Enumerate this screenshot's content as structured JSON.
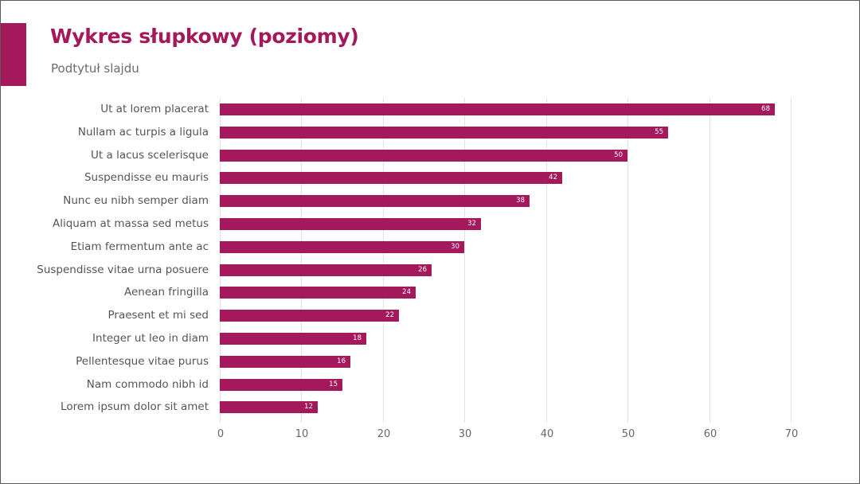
{
  "slide": {
    "title": "Wykres słupkowy (poziomy)",
    "subtitle": "Podtytuł slajdu",
    "accent_color": "#a3195b"
  },
  "chart_data": {
    "type": "bar",
    "orientation": "horizontal",
    "title": "",
    "xlabel": "",
    "ylabel": "",
    "xlim": [
      0,
      70
    ],
    "x_ticks": [
      0,
      10,
      20,
      30,
      40,
      50,
      60,
      70
    ],
    "grid": true,
    "legend": null,
    "bar_color": "#a3195b",
    "data_labels": true,
    "categories": [
      "Ut at lorem placerat",
      "Nullam ac turpis a ligula",
      "Ut a lacus scelerisque",
      "Suspendisse eu mauris",
      "Nunc eu nibh semper diam",
      "Aliquam at massa sed metus",
      "Etiam fermentum ante ac",
      "Suspendisse vitae urna posuere",
      "Aenean fringilla",
      "Praesent et mi sed",
      "Integer ut leo in diam",
      "Pellentesque vitae purus",
      "Nam commodo nibh id",
      "Lorem ipsum dolor sit amet"
    ],
    "values": [
      68,
      55,
      50,
      42,
      38,
      32,
      30,
      26,
      24,
      22,
      18,
      16,
      15,
      12
    ]
  }
}
